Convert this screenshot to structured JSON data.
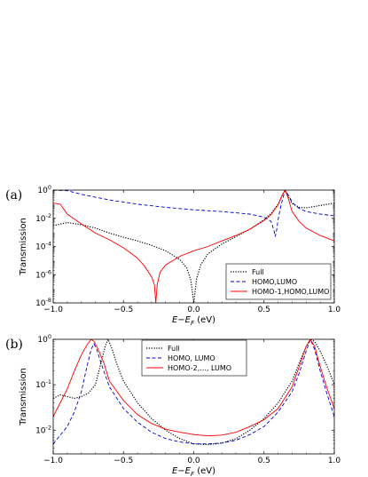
{
  "chart_data": [
    {
      "type": "line",
      "panel_label": "(a)",
      "xlabel": "E−E_F  (eV)",
      "ylabel": "Transmission",
      "xlim": [
        -1.0,
        1.0
      ],
      "yscale": "log",
      "ylim": [
        1e-08,
        1
      ],
      "xticks": [
        "−1.0",
        "−0.5",
        "0.0",
        "0.5",
        "1.0"
      ],
      "yticks": [
        "10^0",
        "10^-2",
        "10^-4",
        "10^-6",
        "10^-8"
      ],
      "legend": "bottom-right",
      "series": [
        {
          "name": "Full",
          "style": "dotted",
          "color": "#000000",
          "x": [
            -1.0,
            -0.9,
            -0.8,
            -0.7,
            -0.6,
            -0.5,
            -0.4,
            -0.3,
            -0.2,
            -0.1,
            -0.05,
            -0.02,
            0.0,
            0.02,
            0.05,
            0.1,
            0.2,
            0.3,
            0.4,
            0.5,
            0.55,
            0.6,
            0.63,
            0.65,
            0.67,
            0.7,
            0.75,
            0.8,
            0.9,
            1.0
          ],
          "y": [
            0.003,
            0.005,
            0.0035,
            0.002,
            0.0009,
            0.00045,
            0.00025,
            0.00012,
            5e-05,
            1.2e-05,
            3e-06,
            4e-07,
            1e-08,
            5e-07,
            5e-06,
            3e-05,
            0.00015,
            0.0005,
            0.0017,
            0.008,
            0.022,
            0.1,
            0.45,
            1.0,
            0.4,
            0.11,
            0.06,
            0.055,
            0.08,
            0.12
          ]
        },
        {
          "name": "HOMO,LUMO",
          "style": "dashed",
          "color": "#0000cc",
          "x": [
            -1.0,
            -0.9,
            -0.8,
            -0.6,
            -0.4,
            -0.2,
            0.0,
            0.2,
            0.4,
            0.5,
            0.55,
            0.57,
            0.58,
            0.59,
            0.6,
            0.62,
            0.65,
            0.68,
            0.7,
            0.75,
            0.8,
            0.9,
            1.0
          ],
          "y": [
            1.0,
            0.9,
            0.5,
            0.2,
            0.1,
            0.06,
            0.04,
            0.03,
            0.02,
            0.012,
            0.006,
            0.0015,
            0.0005,
            0.0015,
            0.008,
            0.08,
            1.0,
            0.35,
            0.14,
            0.05,
            0.03,
            0.02,
            0.015
          ]
        },
        {
          "name": "HOMO-1,HOMO,LUMO",
          "style": "solid",
          "color": "#ff0000",
          "x": [
            -1.0,
            -0.95,
            -0.9,
            -0.8,
            -0.7,
            -0.6,
            -0.5,
            -0.4,
            -0.35,
            -0.3,
            -0.28,
            -0.27,
            -0.26,
            -0.24,
            -0.2,
            -0.1,
            0.0,
            0.1,
            0.2,
            0.3,
            0.4,
            0.5,
            0.55,
            0.6,
            0.63,
            0.65,
            0.67,
            0.7,
            0.75,
            0.8,
            0.9,
            1.0
          ],
          "y": [
            0.12,
            0.1,
            0.02,
            0.004,
            0.0009,
            0.0003,
            8e-05,
            1.5e-05,
            4e-06,
            7e-07,
            2e-07,
            1e-08,
            2e-07,
            1.5e-06,
            5e-06,
            2e-05,
            5e-05,
            0.0001,
            0.00025,
            0.0006,
            0.0017,
            0.007,
            0.018,
            0.09,
            0.45,
            1.0,
            0.3,
            0.03,
            0.006,
            0.002,
            0.0006,
            0.00025
          ]
        }
      ]
    },
    {
      "type": "line",
      "panel_label": "(b)",
      "xlabel": "E−E_F  (eV)",
      "ylabel": "Transmission",
      "xlim": [
        -1.0,
        1.0
      ],
      "yscale": "log",
      "ylim": [
        0.003,
        1
      ],
      "xticks": [
        "−1.0",
        "−0.5",
        "0.0",
        "0.5",
        "1.0"
      ],
      "yticks": [
        "10^0",
        "10^-1",
        "10^-2"
      ],
      "legend": "top-center",
      "series": [
        {
          "name": "Full",
          "style": "dotted",
          "color": "#000000",
          "x": [
            -1.0,
            -0.95,
            -0.9,
            -0.85,
            -0.8,
            -0.75,
            -0.7,
            -0.66,
            -0.63,
            -0.61,
            -0.58,
            -0.55,
            -0.5,
            -0.4,
            -0.3,
            -0.2,
            -0.1,
            0.0,
            0.1,
            0.2,
            0.3,
            0.4,
            0.5,
            0.6,
            0.7,
            0.75,
            0.8,
            0.83,
            0.86,
            0.9,
            0.95,
            1.0
          ],
          "y": [
            0.05,
            0.06,
            0.055,
            0.05,
            0.055,
            0.065,
            0.1,
            0.3,
            0.7,
            1.0,
            0.6,
            0.3,
            0.12,
            0.04,
            0.018,
            0.01,
            0.0065,
            0.005,
            0.0048,
            0.0052,
            0.0065,
            0.01,
            0.018,
            0.04,
            0.12,
            0.3,
            0.7,
            1.0,
            0.9,
            0.55,
            0.25,
            0.1
          ]
        },
        {
          "name": "HOMO, LUMO",
          "style": "dashed",
          "color": "#0000cc",
          "x": [
            -1.0,
            -0.9,
            -0.85,
            -0.8,
            -0.76,
            -0.73,
            -0.71,
            -0.69,
            -0.66,
            -0.6,
            -0.5,
            -0.4,
            -0.3,
            -0.2,
            -0.1,
            0.0,
            0.1,
            0.2,
            0.3,
            0.4,
            0.5,
            0.6,
            0.7,
            0.75,
            0.8,
            0.83,
            0.86,
            0.9,
            0.95,
            1.0
          ],
          "y": [
            0.005,
            0.012,
            0.025,
            0.07,
            0.25,
            0.6,
            0.8,
            0.6,
            0.3,
            0.09,
            0.03,
            0.015,
            0.009,
            0.0065,
            0.0055,
            0.005,
            0.005,
            0.0052,
            0.006,
            0.008,
            0.012,
            0.025,
            0.07,
            0.18,
            0.55,
            1.0,
            0.6,
            0.2,
            0.06,
            0.02
          ]
        },
        {
          "name": "HOMO-2,..., LUMO",
          "style": "solid",
          "color": "#ff0000",
          "x": [
            -1.0,
            -0.95,
            -0.9,
            -0.85,
            -0.8,
            -0.76,
            -0.73,
            -0.71,
            -0.68,
            -0.64,
            -0.6,
            -0.5,
            -0.4,
            -0.3,
            -0.2,
            -0.1,
            0.0,
            0.1,
            0.2,
            0.3,
            0.4,
            0.5,
            0.6,
            0.7,
            0.75,
            0.8,
            0.83,
            0.86,
            0.9,
            0.95,
            1.0
          ],
          "y": [
            0.02,
            0.04,
            0.08,
            0.2,
            0.45,
            0.75,
            1.0,
            0.9,
            0.6,
            0.3,
            0.12,
            0.045,
            0.022,
            0.014,
            0.0105,
            0.009,
            0.008,
            0.0075,
            0.0078,
            0.009,
            0.012,
            0.017,
            0.03,
            0.09,
            0.25,
            0.7,
            1.0,
            0.7,
            0.25,
            0.08,
            0.03
          ]
        }
      ]
    }
  ]
}
